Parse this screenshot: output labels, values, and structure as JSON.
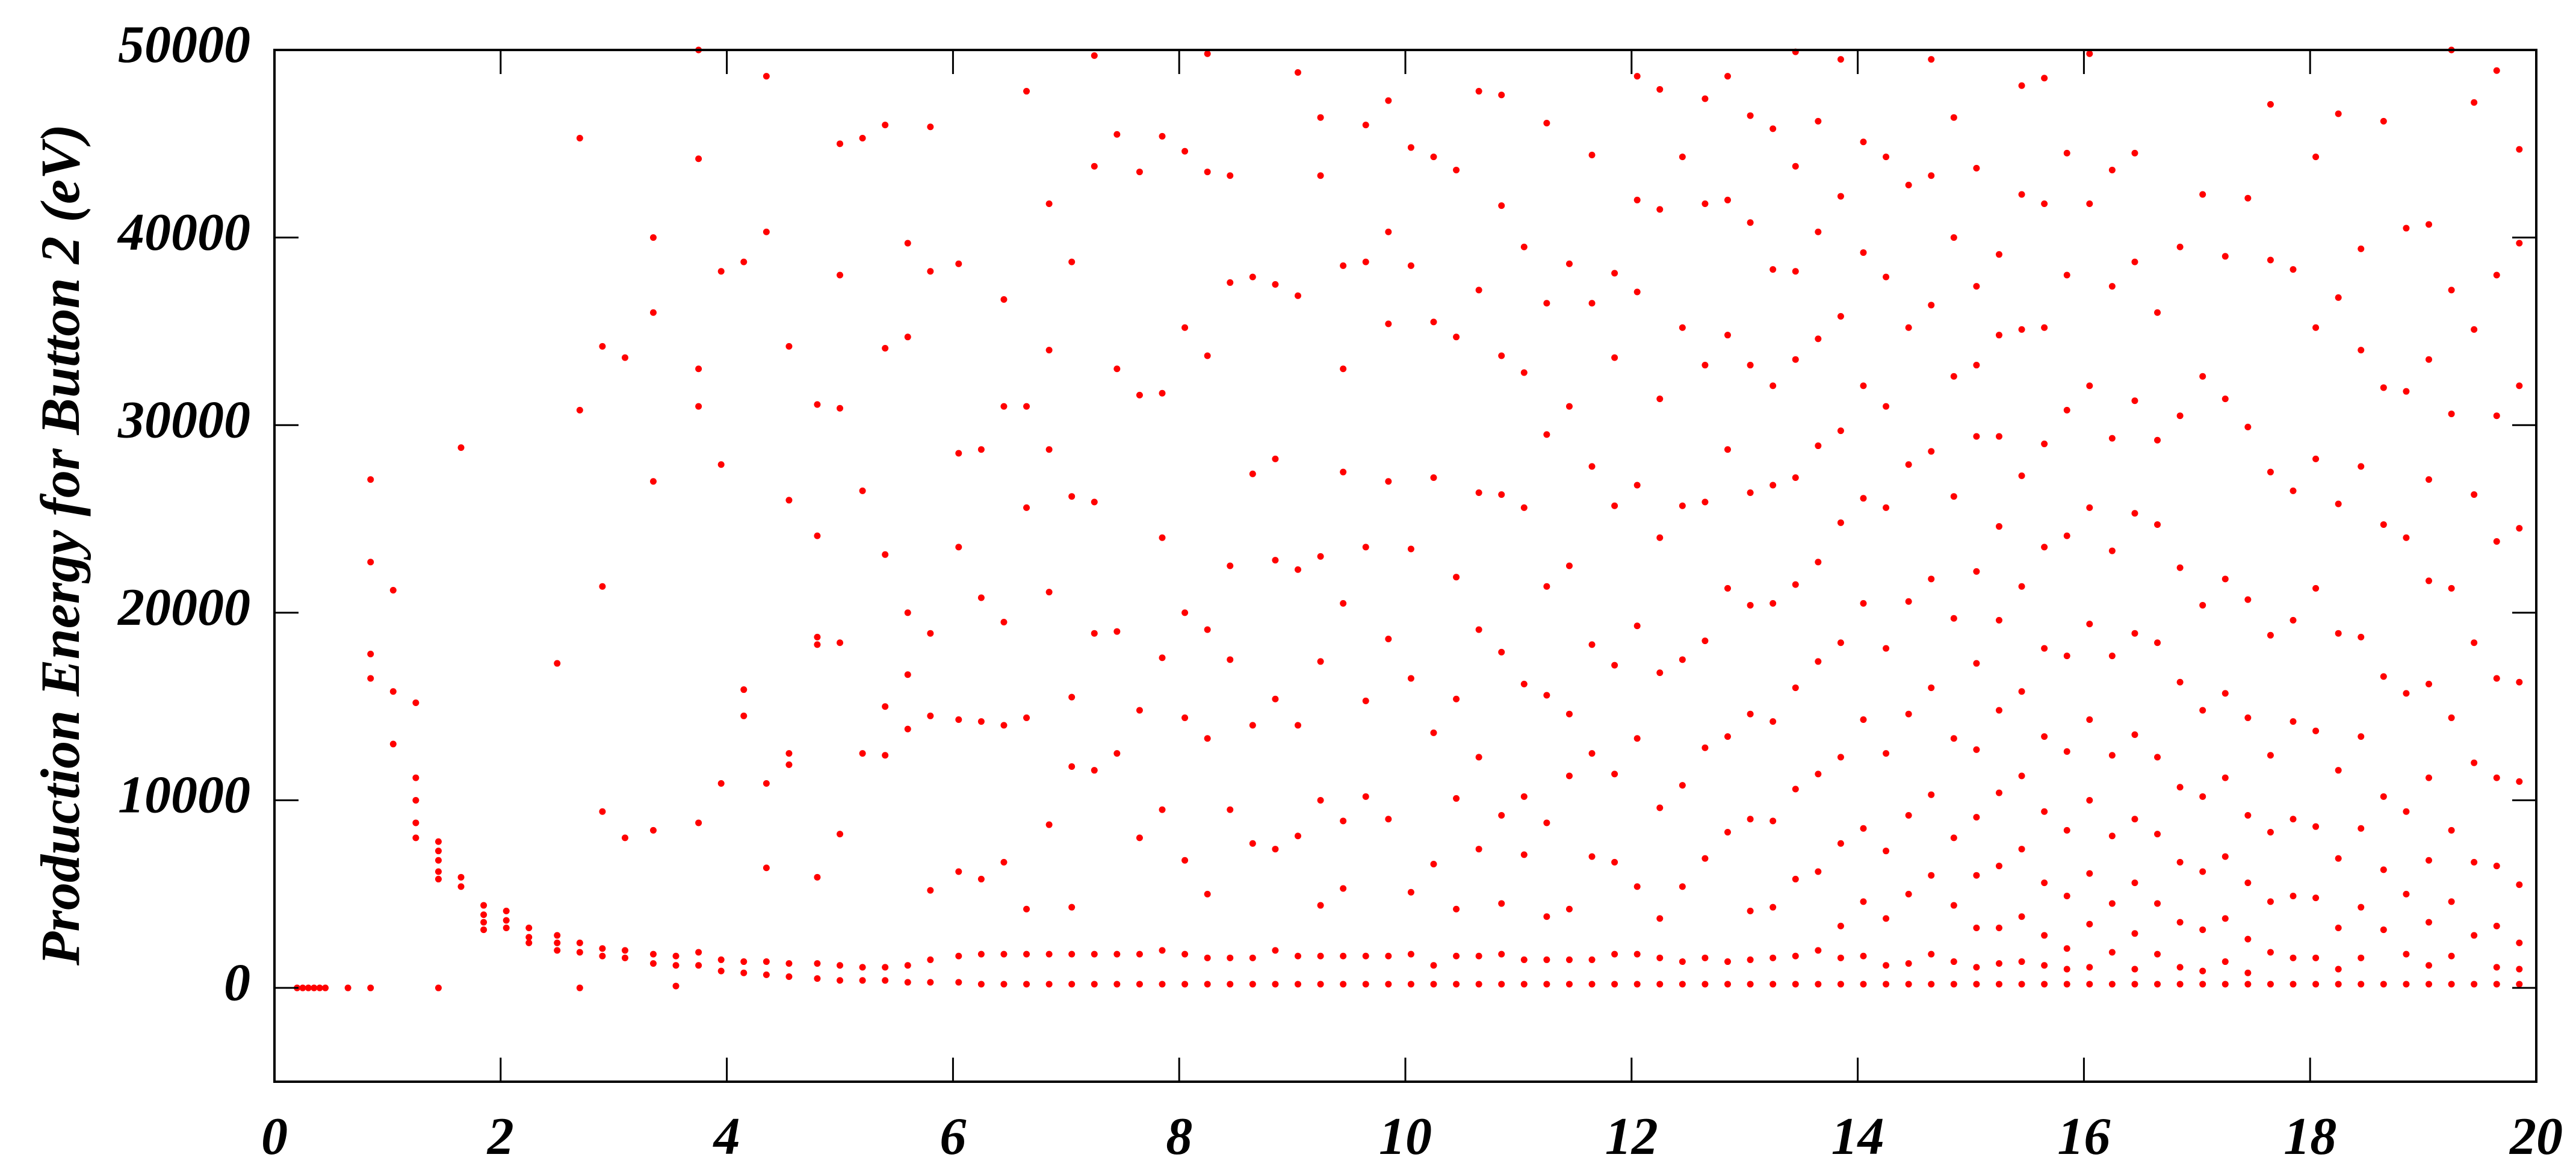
{
  "chart_data": {
    "type": "scatter",
    "ylabel": "Production Energy for Button 2 (eV)",
    "color": "#ff0000",
    "xlim": [
      0,
      20
    ],
    "xticks": [
      0,
      2,
      4,
      6,
      8,
      10,
      12,
      14,
      16,
      18,
      20
    ],
    "ylim": [
      -5000,
      50000
    ],
    "yticks": [
      0,
      10000,
      20000,
      30000,
      40000,
      50000
    ],
    "x": [
      0.2,
      0.25,
      0.3,
      0.35,
      0.4,
      0.45,
      0.65,
      0.85,
      0.85,
      0.85,
      0.85,
      0.85,
      1.05,
      1.05,
      1.05,
      1.25,
      1.25,
      1.25,
      1.25,
      1.25,
      1.45,
      1.45,
      1.45,
      1.45,
      1.45,
      1.45,
      1.65,
      1.65,
      1.65,
      1.85,
      1.85,
      1.85,
      1.85,
      2.05,
      2.05,
      2.05,
      2.25,
      2.25,
      2.25,
      2.5,
      2.5,
      2.5,
      2.5,
      2.7,
      2.7,
      2.7,
      2.7,
      2.7,
      2.9,
      2.9,
      2.9,
      2.9,
      2.9,
      3.1,
      3.1,
      3.1,
      3.1,
      3.35,
      3.35,
      3.35,
      3.35,
      3.35,
      3.35,
      3.55,
      3.55,
      3.55,
      3.75,
      3.75,
      3.75,
      3.75,
      3.75,
      3.75,
      3.75,
      3.95,
      3.95,
      3.95,
      3.95,
      3.95,
      4.15,
      4.15,
      4.15,
      4.15,
      4.15,
      4.35,
      4.35,
      4.35,
      4.35,
      4.35,
      4.35,
      4.55,
      4.55,
      4.55,
      4.55,
      4.55,
      4.55,
      4.8,
      4.8,
      4.8,
      4.8,
      4.8,
      4.8,
      4.8,
      5.0,
      5.0,
      5.0,
      5.0,
      5.0,
      5.0,
      5.0,
      5.2,
      5.2,
      5.2,
      5.2,
      5.2,
      5.4,
      5.4,
      5.4,
      5.4,
      5.4,
      5.4,
      5.4,
      5.6,
      5.6,
      5.6,
      5.6,
      5.6,
      5.6,
      5.6,
      5.8,
      5.8,
      5.8,
      5.8,
      5.8,
      5.8,
      5.8,
      6.05,
      6.05,
      6.05,
      6.05,
      6.05,
      6.05,
      6.05,
      6.25,
      6.25,
      6.25,
      6.25,
      6.25,
      6.25,
      6.45,
      6.45,
      6.45,
      6.45,
      6.45,
      6.45,
      6.45,
      6.65,
      6.65,
      6.65,
      6.65,
      6.65,
      6.65,
      6.65,
      6.85,
      6.85,
      6.85,
      6.85,
      6.85,
      6.85,
      6.85,
      7.05,
      7.05,
      7.05,
      7.05,
      7.05,
      7.05,
      7.05,
      7.25,
      7.25,
      7.25,
      7.25,
      7.25,
      7.25,
      7.25,
      7.45,
      7.45,
      7.45,
      7.45,
      7.45,
      7.45,
      7.65,
      7.65,
      7.65,
      7.65,
      7.65,
      7.65,
      7.85,
      7.85,
      7.85,
      7.85,
      7.85,
      7.85,
      7.85,
      8.05,
      8.05,
      8.05,
      8.05,
      8.05,
      8.05,
      8.05,
      8.25,
      8.25,
      8.25,
      8.25,
      8.25,
      8.25,
      8.25,
      8.25,
      8.45,
      8.45,
      8.45,
      8.45,
      8.45,
      8.45,
      8.45,
      8.65,
      8.65,
      8.65,
      8.65,
      8.65,
      8.65,
      8.85,
      8.85,
      8.85,
      8.85,
      8.85,
      8.85,
      8.85,
      9.05,
      9.05,
      9.05,
      9.05,
      9.05,
      9.05,
      9.05,
      9.25,
      9.25,
      9.25,
      9.25,
      9.25,
      9.25,
      9.25,
      9.25,
      9.45,
      9.45,
      9.45,
      9.45,
      9.45,
      9.45,
      9.45,
      9.45,
      9.65,
      9.65,
      9.65,
      9.65,
      9.65,
      9.65,
      9.65,
      9.85,
      9.85,
      9.85,
      9.85,
      9.85,
      9.85,
      9.85,
      9.85,
      10.05,
      10.05,
      10.05,
      10.05,
      10.05,
      10.05,
      10.05,
      10.25,
      10.25,
      10.25,
      10.25,
      10.25,
      10.25,
      10.25,
      10.45,
      10.45,
      10.45,
      10.45,
      10.45,
      10.45,
      10.45,
      10.45,
      10.65,
      10.65,
      10.65,
      10.65,
      10.65,
      10.65,
      10.65,
      10.65,
      10.85,
      10.85,
      10.85,
      10.85,
      10.85,
      10.85,
      10.85,
      10.85,
      10.85,
      11.05,
      11.05,
      11.05,
      11.05,
      11.05,
      11.05,
      11.05,
      11.05,
      11.25,
      11.25,
      11.25,
      11.25,
      11.25,
      11.25,
      11.25,
      11.25,
      11.25,
      11.45,
      11.45,
      11.45,
      11.45,
      11.45,
      11.45,
      11.45,
      11.45,
      11.65,
      11.65,
      11.65,
      11.65,
      11.65,
      11.65,
      11.65,
      11.65,
      11.85,
      11.85,
      11.85,
      11.85,
      11.85,
      11.85,
      11.85,
      11.85,
      12.05,
      12.05,
      12.05,
      12.05,
      12.05,
      12.05,
      12.05,
      12.05,
      12.05,
      12.25,
      12.25,
      12.25,
      12.25,
      12.25,
      12.25,
      12.25,
      12.25,
      12.25,
      12.45,
      12.45,
      12.45,
      12.45,
      12.45,
      12.45,
      12.45,
      12.45,
      12.65,
      12.65,
      12.65,
      12.65,
      12.65,
      12.65,
      12.65,
      12.65,
      12.65,
      12.85,
      12.85,
      12.85,
      12.85,
      12.85,
      12.85,
      12.85,
      12.85,
      12.85,
      13.05,
      13.05,
      13.05,
      13.05,
      13.05,
      13.05,
      13.05,
      13.05,
      13.05,
      13.05,
      13.25,
      13.25,
      13.25,
      13.25,
      13.25,
      13.25,
      13.25,
      13.25,
      13.25,
      13.25,
      13.45,
      13.45,
      13.45,
      13.45,
      13.45,
      13.45,
      13.45,
      13.45,
      13.45,
      13.45,
      13.45,
      13.65,
      13.65,
      13.65,
      13.65,
      13.65,
      13.65,
      13.65,
      13.65,
      13.65,
      13.65,
      13.85,
      13.85,
      13.85,
      13.85,
      13.85,
      13.85,
      13.85,
      13.85,
      13.85,
      13.85,
      13.85,
      14.05,
      14.05,
      14.05,
      14.05,
      14.05,
      14.05,
      14.05,
      14.05,
      14.05,
      14.05,
      14.25,
      14.25,
      14.25,
      14.25,
      14.25,
      14.25,
      14.25,
      14.25,
      14.25,
      14.25,
      14.45,
      14.45,
      14.45,
      14.45,
      14.45,
      14.45,
      14.45,
      14.45,
      14.45,
      14.65,
      14.65,
      14.65,
      14.65,
      14.65,
      14.65,
      14.65,
      14.65,
      14.65,
      14.65,
      14.85,
      14.85,
      14.85,
      14.85,
      14.85,
      14.85,
      14.85,
      14.85,
      14.85,
      14.85,
      15.05,
      15.05,
      15.05,
      15.05,
      15.05,
      15.05,
      15.05,
      15.05,
      15.05,
      15.05,
      15.05,
      15.05,
      15.25,
      15.25,
      15.25,
      15.25,
      15.25,
      15.25,
      15.25,
      15.25,
      15.25,
      15.25,
      15.25,
      15.45,
      15.45,
      15.45,
      15.45,
      15.45,
      15.45,
      15.45,
      15.45,
      15.45,
      15.45,
      15.45,
      15.65,
      15.65,
      15.65,
      15.65,
      15.65,
      15.65,
      15.65,
      15.65,
      15.65,
      15.65,
      15.65,
      15.65,
      15.85,
      15.85,
      15.85,
      15.85,
      15.85,
      15.85,
      15.85,
      15.85,
      15.85,
      15.85,
      15.85,
      16.05,
      16.05,
      16.05,
      16.05,
      16.05,
      16.05,
      16.05,
      16.05,
      16.05,
      16.05,
      16.05,
      16.25,
      16.25,
      16.25,
      16.25,
      16.25,
      16.25,
      16.25,
      16.25,
      16.25,
      16.25,
      16.45,
      16.45,
      16.45,
      16.45,
      16.45,
      16.45,
      16.45,
      16.45,
      16.45,
      16.45,
      16.45,
      16.65,
      16.65,
      16.65,
      16.65,
      16.65,
      16.65,
      16.65,
      16.65,
      16.65,
      16.85,
      16.85,
      16.85,
      16.85,
      16.85,
      16.85,
      16.85,
      16.85,
      16.85,
      17.05,
      17.05,
      17.05,
      17.05,
      17.05,
      17.05,
      17.05,
      17.05,
      17.05,
      17.25,
      17.25,
      17.25,
      17.25,
      17.25,
      17.25,
      17.25,
      17.25,
      17.25,
      17.45,
      17.45,
      17.45,
      17.45,
      17.45,
      17.45,
      17.45,
      17.45,
      17.45,
      17.65,
      17.65,
      17.65,
      17.65,
      17.65,
      17.65,
      17.65,
      17.65,
      17.65,
      17.85,
      17.85,
      17.85,
      17.85,
      17.85,
      17.85,
      17.85,
      17.85,
      18.05,
      18.05,
      18.05,
      18.05,
      18.05,
      18.05,
      18.05,
      18.05,
      18.05,
      18.25,
      18.25,
      18.25,
      18.25,
      18.25,
      18.25,
      18.25,
      18.25,
      18.25,
      18.45,
      18.45,
      18.45,
      18.45,
      18.45,
      18.45,
      18.45,
      18.45,
      18.45,
      18.65,
      18.65,
      18.65,
      18.65,
      18.65,
      18.65,
      18.65,
      18.65,
      18.85,
      18.85,
      18.85,
      18.85,
      18.85,
      18.85,
      18.85,
      18.85,
      19.05,
      19.05,
      19.05,
      19.05,
      19.05,
      19.05,
      19.05,
      19.05,
      19.05,
      19.05,
      19.25,
      19.25,
      19.25,
      19.25,
      19.25,
      19.25,
      19.25,
      19.25,
      19.25,
      19.45,
      19.45,
      19.45,
      19.45,
      19.45,
      19.45,
      19.45,
      19.45,
      19.65,
      19.65,
      19.65,
      19.65,
      19.65,
      19.65,
      19.65,
      19.65,
      19.65,
      19.65,
      19.85,
      19.85,
      19.85,
      19.85,
      19.85,
      19.85,
      19.85,
      19.85,
      19.85,
      19.85
    ],
    "values": [
      0,
      0,
      0,
      0,
      0,
      0,
      0,
      27100,
      22700,
      17800,
      16500,
      0,
      21200,
      15800,
      13000,
      15200,
      11200,
      10000,
      8800,
      8000,
      7800,
      7300,
      6800,
      6200,
      5800,
      0,
      28800,
      5900,
      5400,
      4400,
      3900,
      3500,
      3100,
      4100,
      3600,
      3200,
      3200,
      2700,
      2400,
      17300,
      2800,
      2400,
      2000,
      45300,
      30800,
      2400,
      1900,
      0,
      34200,
      21400,
      9400,
      2100,
      1700,
      33600,
      8000,
      2000,
      1600,
      40000,
      36000,
      27000,
      8400,
      1800,
      1300,
      1700,
      1200,
      100,
      50000,
      44200,
      33000,
      31000,
      8800,
      1900,
      1200,
      38200,
      27900,
      10900,
      1500,
      900,
      38700,
      15900,
      14500,
      1400,
      800,
      48600,
      40300,
      10900,
      6400,
      1400,
      700,
      34200,
      26000,
      12500,
      11900,
      1300,
      600,
      31100,
      24100,
      18700,
      18300,
      5900,
      1300,
      500,
      45000,
      38000,
      30900,
      18400,
      8200,
      1200,
      400,
      45300,
      26500,
      12500,
      1100,
      400,
      46000,
      34100,
      23100,
      15000,
      12400,
      1100,
      400,
      39700,
      34700,
      20000,
      16700,
      13800,
      1200,
      300,
      45900,
      38200,
      18900,
      14500,
      5200,
      1500,
      300,
      38600,
      28500,
      23500,
      14300,
      6200,
      1700,
      300,
      28700,
      20800,
      14200,
      5800,
      1800,
      200,
      36700,
      31000,
      19500,
      14000,
      6700,
      1800,
      200,
      47800,
      31000,
      25600,
      14400,
      4200,
      1800,
      200,
      41800,
      34000,
      28700,
      21100,
      8700,
      1800,
      200,
      38700,
      26200,
      15500,
      11800,
      4300,
      1800,
      200,
      49700,
      43800,
      25900,
      18900,
      11600,
      1800,
      200,
      45500,
      33000,
      19000,
      12500,
      1800,
      200,
      43500,
      31600,
      14800,
      8000,
      1800,
      200,
      45400,
      31700,
      24000,
      17600,
      9500,
      2000,
      200,
      44600,
      35200,
      20000,
      14400,
      6800,
      1800,
      200,
      49800,
      43500,
      33700,
      19100,
      13300,
      5000,
      1600,
      200,
      43300,
      37600,
      22500,
      17500,
      9500,
      1600,
      200,
      37900,
      27400,
      14000,
      7700,
      1600,
      200,
      37500,
      28200,
      22800,
      15400,
      7400,
      2000,
      200,
      48800,
      36900,
      22300,
      14000,
      8100,
      1700,
      200,
      46400,
      43300,
      23000,
      17400,
      10000,
      4400,
      1700,
      200,
      38500,
      33000,
      27500,
      20500,
      8900,
      5300,
      1700,
      200,
      46000,
      38700,
      23500,
      15300,
      10200,
      1700,
      200,
      47300,
      40300,
      35400,
      27000,
      18600,
      9000,
      1700,
      200,
      44800,
      38500,
      23400,
      16500,
      5100,
      1800,
      200,
      44300,
      35500,
      27200,
      13600,
      6600,
      1200,
      200,
      43600,
      34700,
      21900,
      15400,
      10100,
      4200,
      1700,
      200,
      47800,
      37200,
      26400,
      19100,
      12300,
      7400,
      1700,
      200,
      47600,
      41700,
      33700,
      26300,
      17900,
      9200,
      4500,
      1800,
      200,
      39500,
      32800,
      25600,
      16200,
      10200,
      7100,
      1500,
      200,
      46100,
      36500,
      29500,
      21400,
      15600,
      8800,
      3800,
      1500,
      200,
      38600,
      31000,
      22500,
      14600,
      11300,
      4200,
      1500,
      200,
      44400,
      36500,
      27800,
      18300,
      12500,
      7000,
      1500,
      200,
      38100,
      33600,
      25700,
      17200,
      11400,
      6700,
      1800,
      200,
      48600,
      42000,
      37100,
      26800,
      19300,
      13300,
      5400,
      1800,
      200,
      47900,
      41500,
      31400,
      24000,
      16800,
      9600,
      3700,
      1600,
      200,
      44300,
      35200,
      25700,
      17500,
      10800,
      5400,
      1400,
      200,
      47400,
      41800,
      33200,
      25900,
      18500,
      12800,
      6900,
      1600,
      200,
      48600,
      42000,
      34800,
      28700,
      21300,
      13400,
      8300,
      1400,
      200,
      46500,
      40800,
      33200,
      26400,
      20400,
      14600,
      9000,
      4100,
      1500,
      200,
      45800,
      38300,
      32100,
      26800,
      20500,
      14200,
      8900,
      4300,
      1600,
      200,
      49900,
      43800,
      38200,
      33500,
      27200,
      21500,
      16000,
      10600,
      5800,
      1700,
      200,
      46200,
      40300,
      34600,
      28900,
      22700,
      17400,
      11400,
      6200,
      2000,
      200,
      49500,
      42200,
      35800,
      29700,
      24800,
      18400,
      12300,
      7700,
      3300,
      1600,
      200,
      45100,
      39200,
      32100,
      26100,
      20500,
      14300,
      8500,
      4600,
      1700,
      200,
      44300,
      37900,
      31000,
      25600,
      18100,
      12500,
      7300,
      3700,
      1200,
      200,
      42800,
      35200,
      27900,
      20600,
      14600,
      9200,
      5000,
      1300,
      200,
      49500,
      43300,
      36400,
      28600,
      21800,
      16000,
      10300,
      6000,
      1800,
      200,
      46400,
      40000,
      32600,
      26200,
      19700,
      13300,
      8000,
      4400,
      1400,
      200,
      43700,
      37400,
      33200,
      29400,
      22200,
      17300,
      12700,
      9100,
      6000,
      3200,
      1100,
      200,
      39100,
      34800,
      29400,
      24600,
      19600,
      14800,
      10400,
      6500,
      3200,
      1300,
      200,
      48100,
      42300,
      35100,
      27300,
      21400,
      15800,
      11300,
      7400,
      3800,
      1400,
      200,
      48500,
      41800,
      35200,
      29000,
      23500,
      18100,
      13400,
      9400,
      5600,
      2800,
      1200,
      200,
      44500,
      38000,
      30800,
      24100,
      17700,
      12600,
      8400,
      4900,
      2100,
      1000,
      200,
      49800,
      41800,
      32100,
      25600,
      19400,
      14300,
      10000,
      6100,
      3400,
      1100,
      200,
      43600,
      37400,
      29300,
      23300,
      17700,
      12400,
      8100,
      4500,
      1900,
      200,
      44500,
      38700,
      31300,
      25300,
      18900,
      13500,
      9000,
      5600,
      2900,
      1000,
      200,
      36000,
      29200,
      24700,
      18400,
      12300,
      8200,
      4500,
      1800,
      200,
      39500,
      30500,
      22400,
      16300,
      10700,
      6700,
      3500,
      1100,
      200,
      42300,
      32600,
      20400,
      14800,
      10200,
      6200,
      3100,
      900,
      200,
      39000,
      31400,
      21800,
      15700,
      11200,
      7000,
      3700,
      1400,
      200,
      42100,
      29900,
      20700,
      14400,
      9200,
      5600,
      2600,
      800,
      200,
      47100,
      38800,
      27500,
      18800,
      12400,
      8300,
      4600,
      1900,
      200,
      38300,
      26500,
      19600,
      14200,
      9000,
      4900,
      1600,
      200,
      44300,
      35200,
      28200,
      21300,
      13700,
      8600,
      4800,
      1600,
      200,
      46600,
      36800,
      25800,
      18900,
      11600,
      6900,
      3200,
      1000,
      200,
      39400,
      34000,
      27800,
      18700,
      13400,
      8500,
      4300,
      1600,
      200,
      46200,
      32000,
      24700,
      16600,
      10200,
      6300,
      3100,
      200,
      40500,
      31800,
      24000,
      15700,
      9400,
      5000,
      1800,
      200,
      40700,
      33500,
      27100,
      21700,
      16200,
      11200,
      6800,
      3500,
      1200,
      200,
      50000,
      37200,
      30600,
      21300,
      14400,
      8400,
      4600,
      1700,
      200,
      47200,
      35100,
      26300,
      18400,
      12000,
      6700,
      2800,
      200,
      48900,
      38000,
      30500,
      23800,
      16500,
      11200,
      6500,
      3300,
      1100,
      200,
      44700,
      39700,
      32100,
      24500,
      16300,
      11000,
      5500,
      2400,
      1000,
      200
    ]
  }
}
